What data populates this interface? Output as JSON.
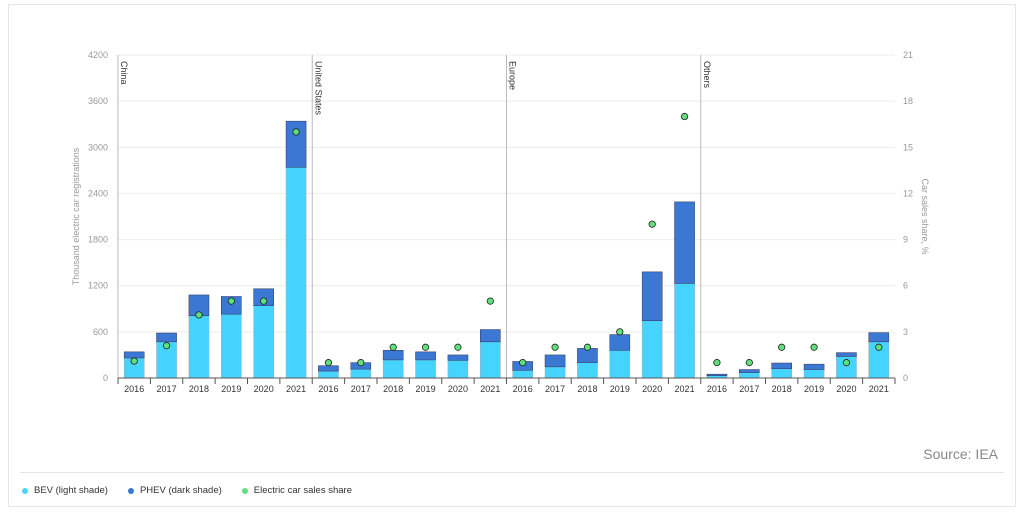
{
  "chart_data": {
    "type": "bar",
    "stacked": true,
    "ylabel": "Thousand electric car registrations",
    "ylabel_right": "Car sales share, %",
    "ylim": [
      0,
      4200
    ],
    "yticks": [
      "0",
      "600",
      "1200",
      "1800",
      "2400",
      "3000",
      "3600",
      "4200"
    ],
    "ylim_right": [
      0,
      21
    ],
    "yticks_right": [
      "0",
      "3",
      "6",
      "9",
      "12",
      "15",
      "18",
      "21"
    ],
    "grid": true,
    "legend_placement": "bottom-left",
    "categories": [
      "2016",
      "2017",
      "2018",
      "2019",
      "2020",
      "2021"
    ],
    "groups": [
      {
        "name": "China",
        "BEV": [
          260,
          470,
          810,
          830,
          940,
          2740
        ],
        "PHEV": [
          80,
          115,
          270,
          230,
          220,
          600
        ],
        "share": [
          1.1,
          2.1,
          4.1,
          5,
          5,
          16
        ]
      },
      {
        "name": "United States",
        "BEV": [
          90,
          115,
          235,
          235,
          230,
          470
        ],
        "PHEV": [
          70,
          85,
          125,
          105,
          70,
          160
        ],
        "share": [
          1,
          1,
          2,
          2,
          2,
          5
        ]
      },
      {
        "name": "Europe",
        "BEV": [
          100,
          145,
          200,
          360,
          745,
          1230
        ],
        "PHEV": [
          115,
          155,
          185,
          205,
          635,
          1060
        ],
        "share": [
          1,
          2,
          2,
          3,
          10,
          17
        ]
      },
      {
        "name": "Others",
        "BEV": [
          30,
          70,
          120,
          110,
          280,
          470
        ],
        "PHEV": [
          20,
          40,
          75,
          70,
          50,
          120
        ],
        "share": [
          1,
          1,
          2,
          2,
          1,
          2
        ]
      }
    ],
    "series": [
      {
        "name": "BEV (light shade)",
        "color": "#45d4ff"
      },
      {
        "name": "PHEV (dark shade)",
        "color": "#3a78d4"
      },
      {
        "name": "Electric car sales share",
        "color": "#5ee07a"
      }
    ]
  },
  "source": "Source: IEA"
}
